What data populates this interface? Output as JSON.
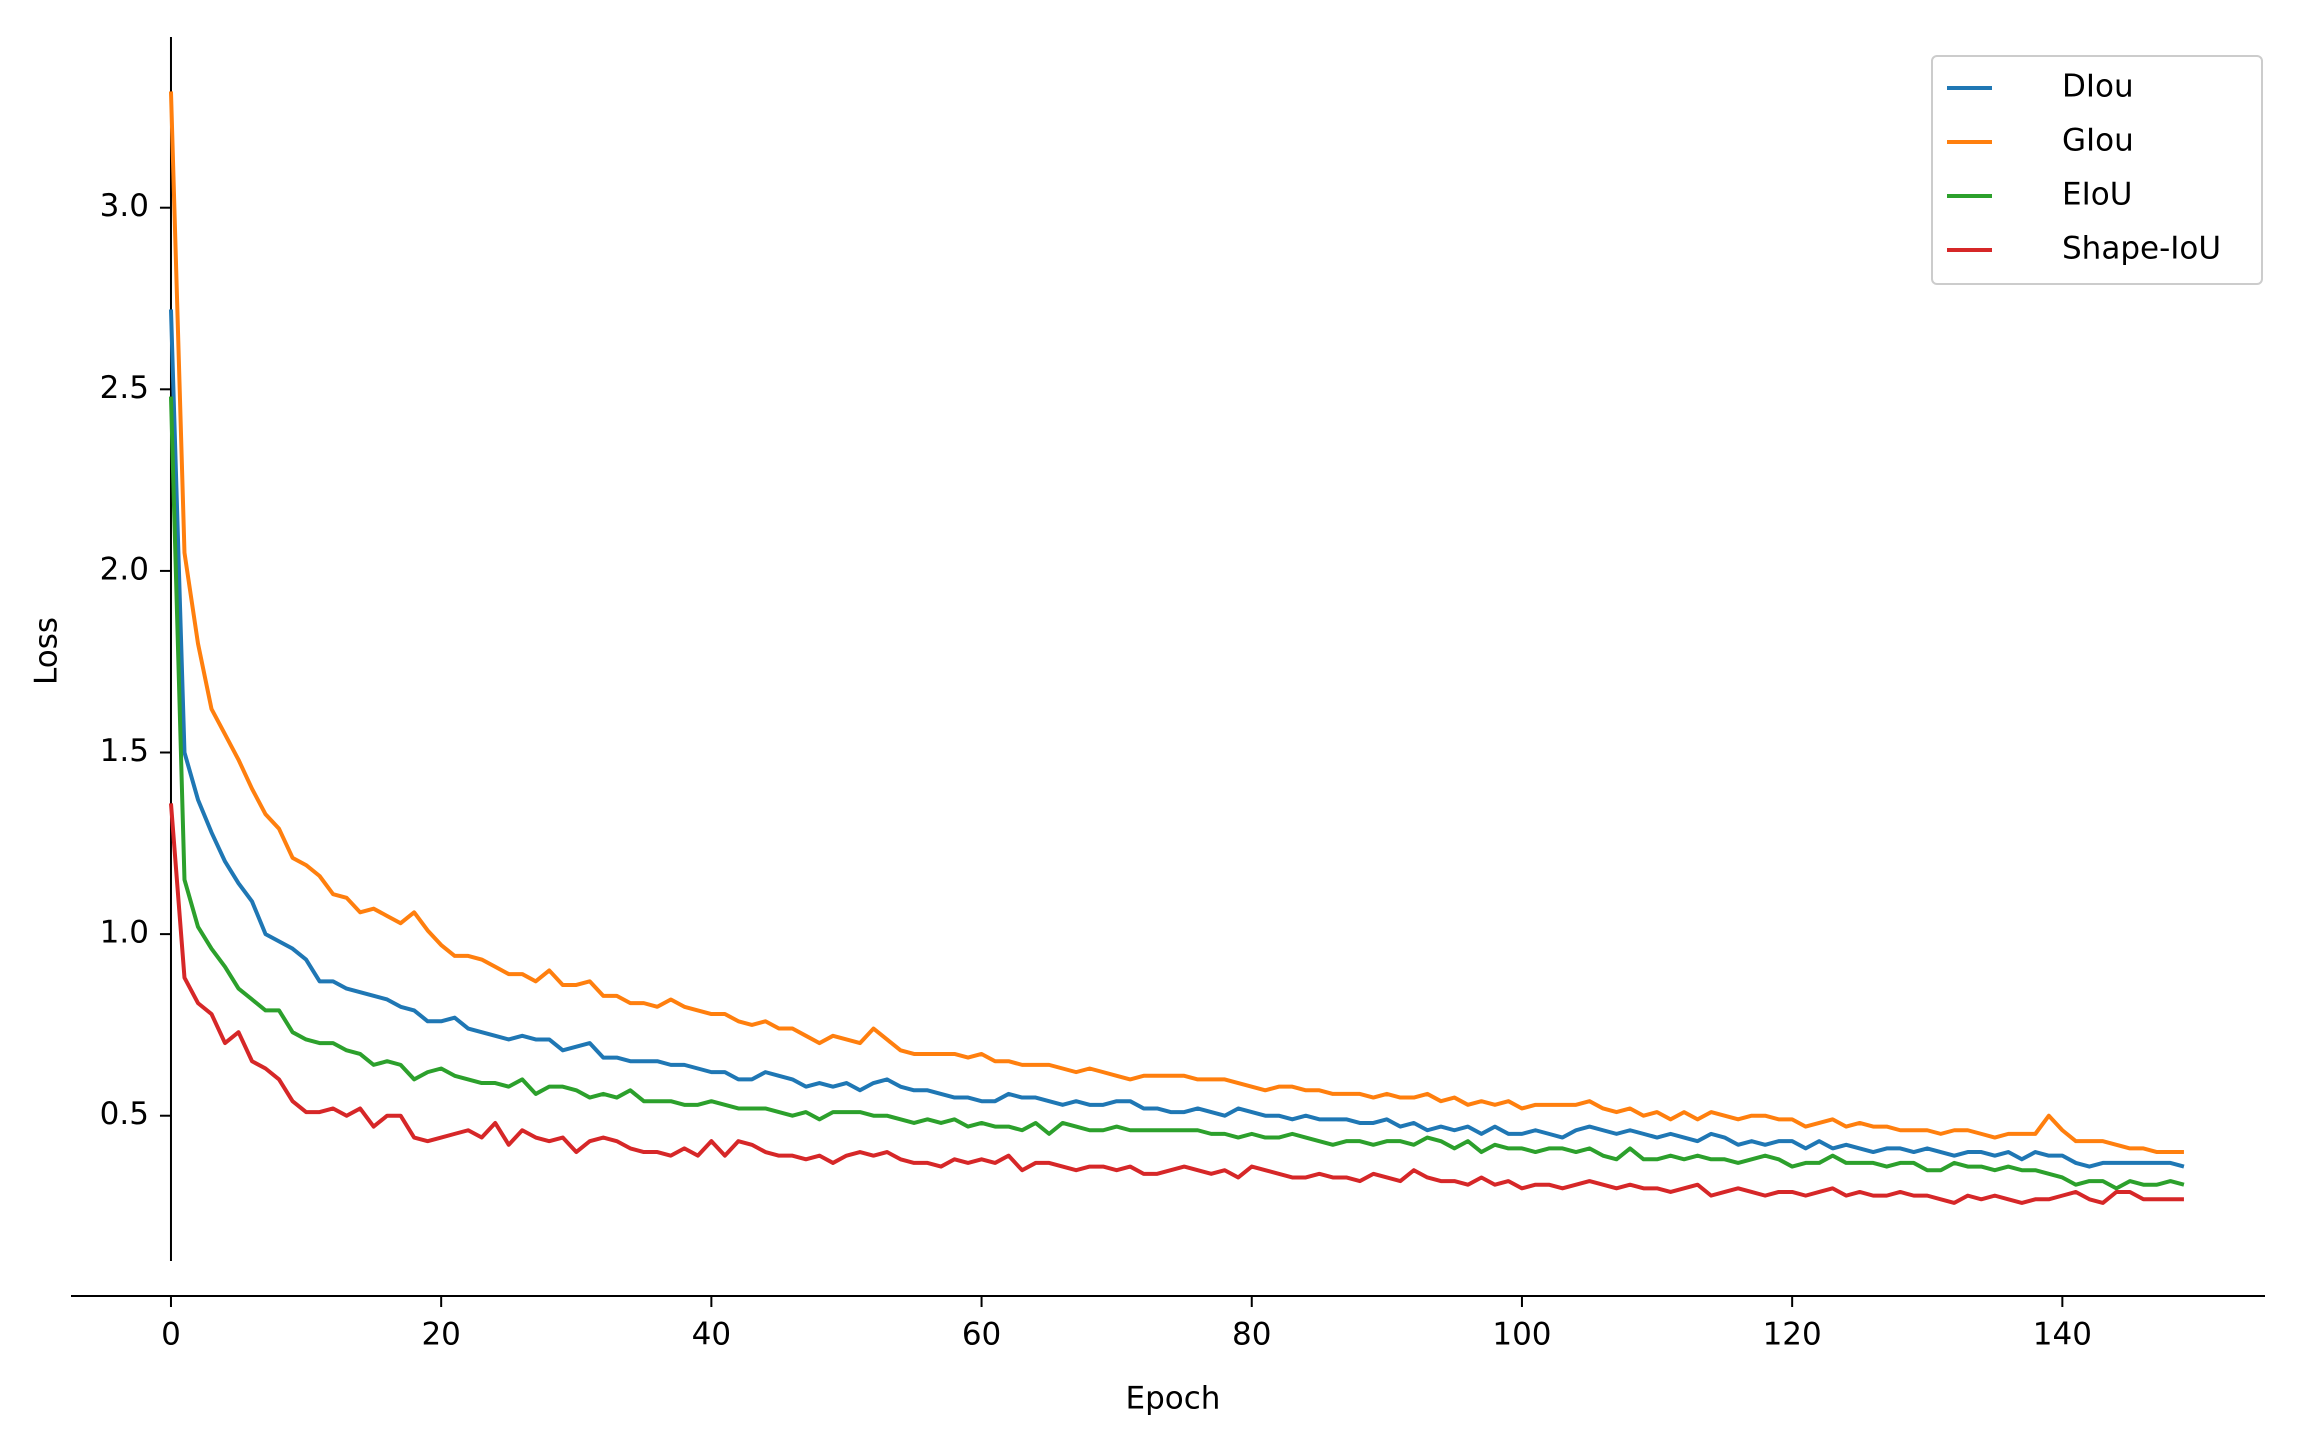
{
  "chart_data": {
    "type": "line",
    "x_label": "Epoch",
    "y_label": "Loss",
    "x": [
      0,
      1,
      2,
      3,
      4,
      5,
      6,
      7,
      8,
      9,
      10,
      11,
      12,
      13,
      14,
      15,
      16,
      17,
      18,
      19,
      20,
      21,
      22,
      23,
      24,
      25,
      26,
      27,
      28,
      29,
      30,
      31,
      32,
      33,
      34,
      35,
      36,
      37,
      38,
      39,
      40,
      41,
      42,
      43,
      44,
      45,
      46,
      47,
      48,
      49,
      50,
      51,
      52,
      53,
      54,
      55,
      56,
      57,
      58,
      59,
      60,
      61,
      62,
      63,
      64,
      65,
      66,
      67,
      68,
      69,
      70,
      71,
      72,
      73,
      74,
      75,
      76,
      77,
      78,
      79,
      80,
      81,
      82,
      83,
      84,
      85,
      86,
      87,
      88,
      89,
      90,
      91,
      92,
      93,
      94,
      95,
      96,
      97,
      98,
      99,
      100,
      101,
      102,
      103,
      104,
      105,
      106,
      107,
      108,
      109,
      110,
      111,
      112,
      113,
      114,
      115,
      116,
      117,
      118,
      119,
      120,
      121,
      122,
      123,
      124,
      125,
      126,
      127,
      128,
      129,
      130,
      131,
      132,
      133,
      134,
      135,
      136,
      137,
      138,
      139,
      140,
      141,
      142,
      143,
      144,
      145,
      146,
      147,
      148,
      149
    ],
    "series": [
      {
        "name": "DIou",
        "color": "#1f77b4",
        "values": [
          2.72,
          1.5,
          1.37,
          1.28,
          1.2,
          1.14,
          1.09,
          1.0,
          0.98,
          0.96,
          0.93,
          0.87,
          0.87,
          0.85,
          0.84,
          0.83,
          0.82,
          0.8,
          0.79,
          0.76,
          0.76,
          0.77,
          0.74,
          0.73,
          0.72,
          0.71,
          0.72,
          0.71,
          0.71,
          0.68,
          0.69,
          0.7,
          0.66,
          0.66,
          0.65,
          0.65,
          0.65,
          0.64,
          0.64,
          0.63,
          0.62,
          0.62,
          0.6,
          0.6,
          0.62,
          0.61,
          0.6,
          0.58,
          0.59,
          0.58,
          0.59,
          0.57,
          0.59,
          0.6,
          0.58,
          0.57,
          0.57,
          0.56,
          0.55,
          0.55,
          0.54,
          0.54,
          0.56,
          0.55,
          0.55,
          0.54,
          0.53,
          0.54,
          0.53,
          0.53,
          0.54,
          0.54,
          0.52,
          0.52,
          0.51,
          0.51,
          0.52,
          0.51,
          0.5,
          0.52,
          0.51,
          0.5,
          0.5,
          0.49,
          0.5,
          0.49,
          0.49,
          0.49,
          0.48,
          0.48,
          0.49,
          0.47,
          0.48,
          0.46,
          0.47,
          0.46,
          0.47,
          0.45,
          0.47,
          0.45,
          0.45,
          0.46,
          0.45,
          0.44,
          0.46,
          0.47,
          0.46,
          0.45,
          0.46,
          0.45,
          0.44,
          0.45,
          0.44,
          0.43,
          0.45,
          0.44,
          0.42,
          0.43,
          0.42,
          0.43,
          0.43,
          0.41,
          0.43,
          0.41,
          0.42,
          0.41,
          0.4,
          0.41,
          0.41,
          0.4,
          0.41,
          0.4,
          0.39,
          0.4,
          0.4,
          0.39,
          0.4,
          0.38,
          0.4,
          0.39,
          0.39,
          0.37,
          0.36,
          0.37,
          0.37,
          0.37,
          0.37,
          0.37,
          0.37,
          0.36
        ]
      },
      {
        "name": "GIou",
        "color": "#ff7f0e",
        "values": [
          3.32,
          2.05,
          1.8,
          1.62,
          1.55,
          1.48,
          1.4,
          1.33,
          1.29,
          1.21,
          1.19,
          1.16,
          1.11,
          1.1,
          1.06,
          1.07,
          1.05,
          1.03,
          1.06,
          1.01,
          0.97,
          0.94,
          0.94,
          0.93,
          0.91,
          0.89,
          0.89,
          0.87,
          0.9,
          0.86,
          0.86,
          0.87,
          0.83,
          0.83,
          0.81,
          0.81,
          0.8,
          0.82,
          0.8,
          0.79,
          0.78,
          0.78,
          0.76,
          0.75,
          0.76,
          0.74,
          0.74,
          0.72,
          0.7,
          0.72,
          0.71,
          0.7,
          0.74,
          0.71,
          0.68,
          0.67,
          0.67,
          0.67,
          0.67,
          0.66,
          0.67,
          0.65,
          0.65,
          0.64,
          0.64,
          0.64,
          0.63,
          0.62,
          0.63,
          0.62,
          0.61,
          0.6,
          0.61,
          0.61,
          0.61,
          0.61,
          0.6,
          0.6,
          0.6,
          0.59,
          0.58,
          0.57,
          0.58,
          0.58,
          0.57,
          0.57,
          0.56,
          0.56,
          0.56,
          0.55,
          0.56,
          0.55,
          0.55,
          0.56,
          0.54,
          0.55,
          0.53,
          0.54,
          0.53,
          0.54,
          0.52,
          0.53,
          0.53,
          0.53,
          0.53,
          0.54,
          0.52,
          0.51,
          0.52,
          0.5,
          0.51,
          0.49,
          0.51,
          0.49,
          0.51,
          0.5,
          0.49,
          0.5,
          0.5,
          0.49,
          0.49,
          0.47,
          0.48,
          0.49,
          0.47,
          0.48,
          0.47,
          0.47,
          0.46,
          0.46,
          0.46,
          0.45,
          0.46,
          0.46,
          0.45,
          0.44,
          0.45,
          0.45,
          0.45,
          0.5,
          0.46,
          0.43,
          0.43,
          0.43,
          0.42,
          0.41,
          0.41,
          0.4,
          0.4,
          0.4
        ]
      },
      {
        "name": "EIoU",
        "color": "#2ca02c",
        "values": [
          2.48,
          1.15,
          1.02,
          0.96,
          0.91,
          0.85,
          0.82,
          0.79,
          0.79,
          0.73,
          0.71,
          0.7,
          0.7,
          0.68,
          0.67,
          0.64,
          0.65,
          0.64,
          0.6,
          0.62,
          0.63,
          0.61,
          0.6,
          0.59,
          0.59,
          0.58,
          0.6,
          0.56,
          0.58,
          0.58,
          0.57,
          0.55,
          0.56,
          0.55,
          0.57,
          0.54,
          0.54,
          0.54,
          0.53,
          0.53,
          0.54,
          0.53,
          0.52,
          0.52,
          0.52,
          0.51,
          0.5,
          0.51,
          0.49,
          0.51,
          0.51,
          0.51,
          0.5,
          0.5,
          0.49,
          0.48,
          0.49,
          0.48,
          0.49,
          0.47,
          0.48,
          0.47,
          0.47,
          0.46,
          0.48,
          0.45,
          0.48,
          0.47,
          0.46,
          0.46,
          0.47,
          0.46,
          0.46,
          0.46,
          0.46,
          0.46,
          0.46,
          0.45,
          0.45,
          0.44,
          0.45,
          0.44,
          0.44,
          0.45,
          0.44,
          0.43,
          0.42,
          0.43,
          0.43,
          0.42,
          0.43,
          0.43,
          0.42,
          0.44,
          0.43,
          0.41,
          0.43,
          0.4,
          0.42,
          0.41,
          0.41,
          0.4,
          0.41,
          0.41,
          0.4,
          0.41,
          0.39,
          0.38,
          0.41,
          0.38,
          0.38,
          0.39,
          0.38,
          0.39,
          0.38,
          0.38,
          0.37,
          0.38,
          0.39,
          0.38,
          0.36,
          0.37,
          0.37,
          0.39,
          0.37,
          0.37,
          0.37,
          0.36,
          0.37,
          0.37,
          0.35,
          0.35,
          0.37,
          0.36,
          0.36,
          0.35,
          0.36,
          0.35,
          0.35,
          0.34,
          0.33,
          0.31,
          0.32,
          0.32,
          0.3,
          0.32,
          0.31,
          0.31,
          0.32,
          0.31
        ]
      },
      {
        "name": "Shape-IoU",
        "color": "#d62728",
        "values": [
          1.36,
          0.88,
          0.81,
          0.78,
          0.7,
          0.73,
          0.65,
          0.63,
          0.6,
          0.54,
          0.51,
          0.51,
          0.52,
          0.5,
          0.52,
          0.47,
          0.5,
          0.5,
          0.44,
          0.43,
          0.44,
          0.45,
          0.46,
          0.44,
          0.48,
          0.42,
          0.46,
          0.44,
          0.43,
          0.44,
          0.4,
          0.43,
          0.44,
          0.43,
          0.41,
          0.4,
          0.4,
          0.39,
          0.41,
          0.39,
          0.43,
          0.39,
          0.43,
          0.42,
          0.4,
          0.39,
          0.39,
          0.38,
          0.39,
          0.37,
          0.39,
          0.4,
          0.39,
          0.4,
          0.38,
          0.37,
          0.37,
          0.36,
          0.38,
          0.37,
          0.38,
          0.37,
          0.39,
          0.35,
          0.37,
          0.37,
          0.36,
          0.35,
          0.36,
          0.36,
          0.35,
          0.36,
          0.34,
          0.34,
          0.35,
          0.36,
          0.35,
          0.34,
          0.35,
          0.33,
          0.36,
          0.35,
          0.34,
          0.33,
          0.33,
          0.34,
          0.33,
          0.33,
          0.32,
          0.34,
          0.33,
          0.32,
          0.35,
          0.33,
          0.32,
          0.32,
          0.31,
          0.33,
          0.31,
          0.32,
          0.3,
          0.31,
          0.31,
          0.3,
          0.31,
          0.32,
          0.31,
          0.3,
          0.31,
          0.3,
          0.3,
          0.29,
          0.3,
          0.31,
          0.28,
          0.29,
          0.3,
          0.29,
          0.28,
          0.29,
          0.29,
          0.28,
          0.29,
          0.3,
          0.28,
          0.29,
          0.28,
          0.28,
          0.29,
          0.28,
          0.28,
          0.27,
          0.26,
          0.28,
          0.27,
          0.28,
          0.27,
          0.26,
          0.27,
          0.27,
          0.28,
          0.29,
          0.27,
          0.26,
          0.29,
          0.29,
          0.27,
          0.27,
          0.27,
          0.27
        ]
      }
    ],
    "xlim": [
      -7.4,
      155
    ],
    "ylim": [
      0.1,
      3.47
    ],
    "xticks": [
      0,
      20,
      40,
      60,
      80,
      100,
      120,
      140
    ],
    "yticks": [
      0.5,
      {
        "value": 1,
        "label": "1.0"
      },
      1.5,
      {
        "value": 2,
        "label": "2.0"
      },
      2.5,
      {
        "value": 3,
        "label": "3.0"
      }
    ],
    "legend": "upper right"
  }
}
